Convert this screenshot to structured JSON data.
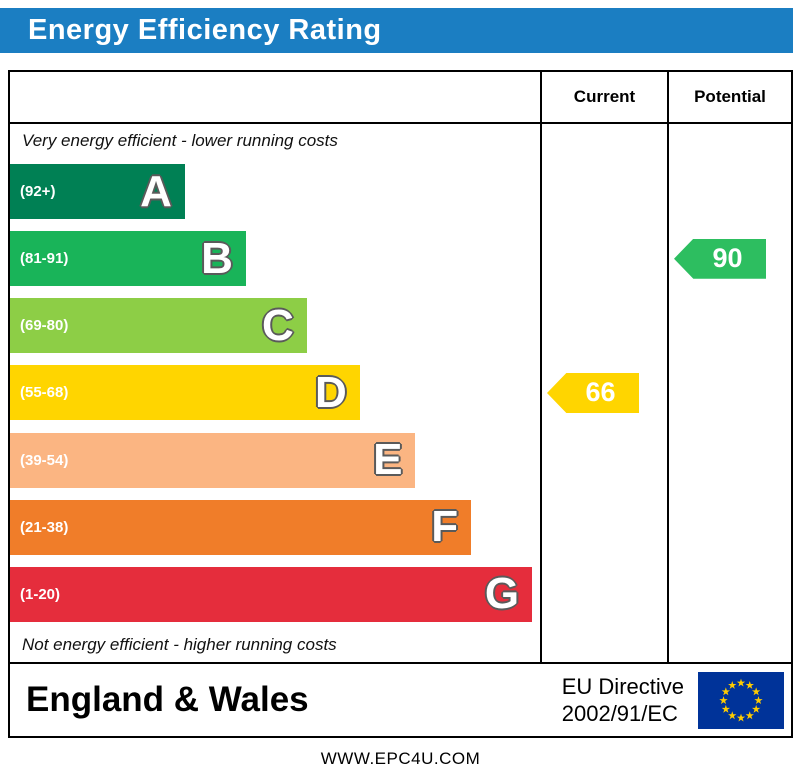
{
  "header": {
    "title": "Energy Efficiency Rating",
    "bg_color": "#1b7ec2",
    "text_color": "#ffffff"
  },
  "table": {
    "current_header": "Current",
    "potential_header": "Potential",
    "top_note": "Very energy efficient - lower running costs",
    "bottom_note": "Not energy efficient - higher running costs"
  },
  "chart_data": {
    "type": "bar",
    "title": "Energy Efficiency Rating",
    "bands": [
      {
        "letter": "A",
        "range": "(92+)",
        "color": "#008054",
        "width_pct": 33
      },
      {
        "letter": "B",
        "range": "(81-91)",
        "color": "#19b459",
        "width_pct": 44.5
      },
      {
        "letter": "C",
        "range": "(69-80)",
        "color": "#8dce46",
        "width_pct": 56
      },
      {
        "letter": "D",
        "range": "(55-68)",
        "color": "#ffd500",
        "width_pct": 66
      },
      {
        "letter": "E",
        "range": "(39-54)",
        "color": "#fbb582",
        "width_pct": 76.5
      },
      {
        "letter": "F",
        "range": "(21-38)",
        "color": "#f07d29",
        "width_pct": 87
      },
      {
        "letter": "G",
        "range": "(1-20)",
        "color": "#e52d3c",
        "width_pct": 98.5
      }
    ],
    "current": {
      "value": 66,
      "band": "D",
      "color": "#ffd500"
    },
    "potential": {
      "value": 90,
      "band": "B",
      "color": "#2dbe60"
    }
  },
  "footer": {
    "region": "England & Wales",
    "directive_line1": "EU Directive",
    "directive_line2": "2002/91/EC",
    "eu_flag": {
      "bg": "#003399",
      "star": "#ffcc00"
    }
  },
  "website": "WWW.EPC4U.COM"
}
